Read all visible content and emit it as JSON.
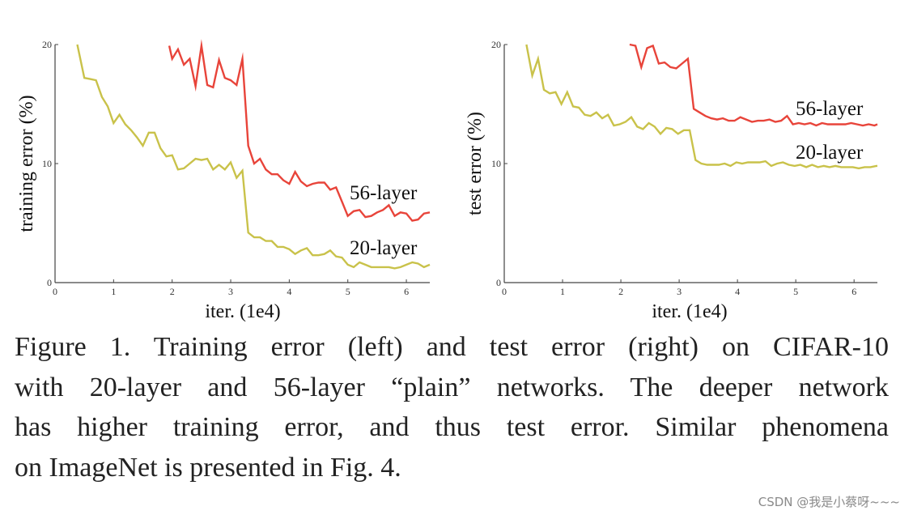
{
  "chart_data": [
    {
      "type": "line",
      "xlabel": "iter. (1e4)",
      "ylabel": "training error (%)",
      "xlim": [
        0,
        6.4
      ],
      "ylim": [
        0,
        20
      ],
      "xticks": [
        "0",
        "1",
        "2",
        "3",
        "4",
        "5",
        "6"
      ],
      "yticks": [
        "0",
        "10",
        "20"
      ],
      "series": [
        {
          "name": "56-layer",
          "color": "#e8443a",
          "x": [
            1.95,
            2.0,
            2.1,
            2.2,
            2.3,
            2.4,
            2.5,
            2.6,
            2.7,
            2.8,
            2.9,
            3.0,
            3.1,
            3.2,
            3.3,
            3.4,
            3.5,
            3.6,
            3.7,
            3.8,
            3.9,
            4.0,
            4.1,
            4.2,
            4.3,
            4.4,
            4.5,
            4.6,
            4.7,
            4.8,
            4.9,
            5.0,
            5.1,
            5.2,
            5.3,
            5.4,
            5.5,
            5.6,
            5.7,
            5.8,
            5.9,
            6.0,
            6.1,
            6.2,
            6.3,
            6.4
          ],
          "values": [
            19.9,
            18.8,
            19.6,
            18.3,
            18.8,
            16.5,
            19.9,
            16.6,
            16.4,
            18.7,
            17.2,
            17.0,
            16.6,
            18.8,
            11.5,
            10.0,
            10.4,
            9.5,
            9.1,
            9.1,
            8.6,
            8.3,
            9.3,
            8.5,
            8.1,
            8.3,
            8.4,
            8.4,
            7.8,
            8.0,
            6.8,
            5.6,
            6.0,
            6.1,
            5.5,
            5.6,
            5.9,
            6.1,
            6.5,
            5.6,
            5.9,
            5.8,
            5.2,
            5.3,
            5.8,
            5.9
          ]
        },
        {
          "name": "20-layer",
          "color": "#c9c24a",
          "x": [
            0.38,
            0.5,
            0.6,
            0.7,
            0.8,
            0.9,
            1.0,
            1.1,
            1.2,
            1.3,
            1.4,
            1.5,
            1.6,
            1.7,
            1.8,
            1.9,
            2.0,
            2.1,
            2.2,
            2.3,
            2.4,
            2.5,
            2.6,
            2.7,
            2.8,
            2.9,
            3.0,
            3.1,
            3.2,
            3.3,
            3.4,
            3.5,
            3.6,
            3.7,
            3.8,
            3.9,
            4.0,
            4.1,
            4.2,
            4.3,
            4.4,
            4.5,
            4.6,
            4.7,
            4.8,
            4.9,
            5.0,
            5.1,
            5.2,
            5.3,
            5.4,
            5.5,
            5.6,
            5.7,
            5.8,
            5.9,
            6.0,
            6.1,
            6.2,
            6.3,
            6.4
          ],
          "values": [
            20.0,
            17.2,
            17.1,
            17.0,
            15.6,
            14.8,
            13.4,
            14.1,
            13.3,
            12.8,
            12.2,
            11.5,
            12.6,
            12.6,
            11.3,
            10.6,
            10.7,
            9.5,
            9.6,
            10.0,
            10.4,
            10.3,
            10.4,
            9.5,
            9.9,
            9.5,
            10.1,
            8.8,
            9.4,
            4.2,
            3.8,
            3.8,
            3.5,
            3.5,
            3.0,
            3.0,
            2.8,
            2.4,
            2.7,
            2.9,
            2.3,
            2.3,
            2.4,
            2.7,
            2.2,
            2.1,
            1.5,
            1.3,
            1.7,
            1.5,
            1.3,
            1.3,
            1.3,
            1.3,
            1.2,
            1.3,
            1.5,
            1.7,
            1.6,
            1.3,
            1.5
          ]
        }
      ]
    },
    {
      "type": "line",
      "xlabel": "iter. (1e4)",
      "ylabel": "test error (%)",
      "xlim": [
        0,
        6.4
      ],
      "ylim": [
        0,
        20
      ],
      "xticks": [
        "0",
        "1",
        "2",
        "3",
        "4",
        "5",
        "6"
      ],
      "yticks": [
        "0",
        "10",
        "20"
      ],
      "series": [
        {
          "name": "56-layer",
          "color": "#e8443a",
          "x": [
            2.15,
            2.25,
            2.35,
            2.45,
            2.55,
            2.65,
            2.75,
            2.85,
            2.95,
            3.05,
            3.15,
            3.25,
            3.35,
            3.45,
            3.55,
            3.65,
            3.75,
            3.85,
            3.95,
            4.05,
            4.15,
            4.25,
            4.35,
            4.45,
            4.55,
            4.65,
            4.75,
            4.85,
            4.95,
            5.05,
            5.15,
            5.25,
            5.35,
            5.45,
            5.55,
            5.65,
            5.75,
            5.85,
            5.95,
            6.05,
            6.15,
            6.25,
            6.35,
            6.4
          ],
          "values": [
            20.0,
            19.9,
            18.1,
            19.7,
            19.9,
            18.4,
            18.5,
            18.1,
            18.0,
            18.4,
            18.8,
            14.6,
            14.3,
            14.0,
            13.8,
            13.7,
            13.8,
            13.6,
            13.6,
            13.9,
            13.7,
            13.5,
            13.6,
            13.6,
            13.7,
            13.5,
            13.6,
            14.0,
            13.3,
            13.4,
            13.3,
            13.4,
            13.2,
            13.4,
            13.3,
            13.3,
            13.3,
            13.3,
            13.4,
            13.3,
            13.2,
            13.3,
            13.2,
            13.3
          ]
        },
        {
          "name": "20-layer",
          "color": "#c9c24a",
          "x": [
            0.38,
            0.48,
            0.58,
            0.68,
            0.78,
            0.88,
            0.98,
            1.08,
            1.18,
            1.28,
            1.38,
            1.48,
            1.58,
            1.68,
            1.78,
            1.88,
            1.98,
            2.08,
            2.18,
            2.28,
            2.38,
            2.48,
            2.58,
            2.68,
            2.78,
            2.88,
            2.98,
            3.08,
            3.18,
            3.28,
            3.38,
            3.48,
            3.58,
            3.68,
            3.78,
            3.88,
            3.98,
            4.08,
            4.18,
            4.28,
            4.38,
            4.48,
            4.58,
            4.68,
            4.78,
            4.88,
            4.98,
            5.08,
            5.18,
            5.28,
            5.38,
            5.48,
            5.58,
            5.68,
            5.78,
            5.88,
            5.98,
            6.08,
            6.18,
            6.28,
            6.38,
            6.4
          ],
          "values": [
            20.0,
            17.4,
            18.8,
            16.2,
            15.9,
            16.0,
            15.0,
            16.0,
            14.8,
            14.7,
            14.1,
            14.0,
            14.3,
            13.8,
            14.1,
            13.2,
            13.3,
            13.5,
            13.9,
            13.1,
            12.9,
            13.4,
            13.1,
            12.5,
            13.0,
            12.9,
            12.5,
            12.8,
            12.8,
            10.3,
            10.0,
            9.9,
            9.9,
            9.9,
            10.0,
            9.8,
            10.1,
            10.0,
            10.1,
            10.1,
            10.1,
            10.2,
            9.8,
            10.0,
            10.1,
            9.9,
            9.8,
            9.9,
            9.7,
            9.9,
            9.7,
            9.8,
            9.7,
            9.8,
            9.7,
            9.7,
            9.7,
            9.6,
            9.7,
            9.7,
            9.8,
            9.8
          ]
        }
      ]
    }
  ],
  "caption": {
    "line1": "Figure 1. Training error (left) and test error (right) on CIFAR-10",
    "line2": "with 20-layer and 56-layer “plain” networks. The deeper network",
    "line3": "has higher training error, and thus test error.  Similar phenomena",
    "line4": "on ImageNet is presented in Fig. 4."
  },
  "watermark": "CSDN @我是小蔡呀~~~"
}
